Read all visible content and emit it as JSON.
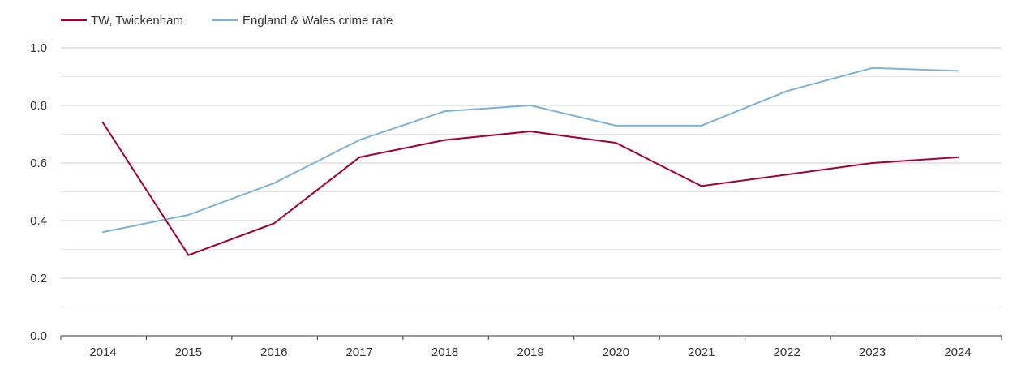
{
  "chart_data": {
    "type": "line",
    "title": "",
    "xlabel": "",
    "ylabel": "",
    "x": [
      "2014",
      "2015",
      "2016",
      "2017",
      "2018",
      "2019",
      "2020",
      "2021",
      "2022",
      "2023",
      "2024"
    ],
    "ylim": [
      0,
      1.0
    ],
    "y_ticks": [
      "0.0",
      "0.2",
      "0.4",
      "0.6",
      "0.8",
      "1.0"
    ],
    "grid": true,
    "legend_position": "top-left",
    "series": [
      {
        "name": "TW, Twickenham",
        "color": "#a3002f",
        "values": [
          0.74,
          0.28,
          0.39,
          0.62,
          0.68,
          0.71,
          0.67,
          0.52,
          0.56,
          0.6,
          0.62
        ]
      },
      {
        "name": "England & Wales crime rate",
        "color": "#7bb3d6",
        "values": [
          0.36,
          0.42,
          0.53,
          0.68,
          0.78,
          0.8,
          0.73,
          0.73,
          0.85,
          0.93,
          0.92
        ]
      }
    ]
  }
}
